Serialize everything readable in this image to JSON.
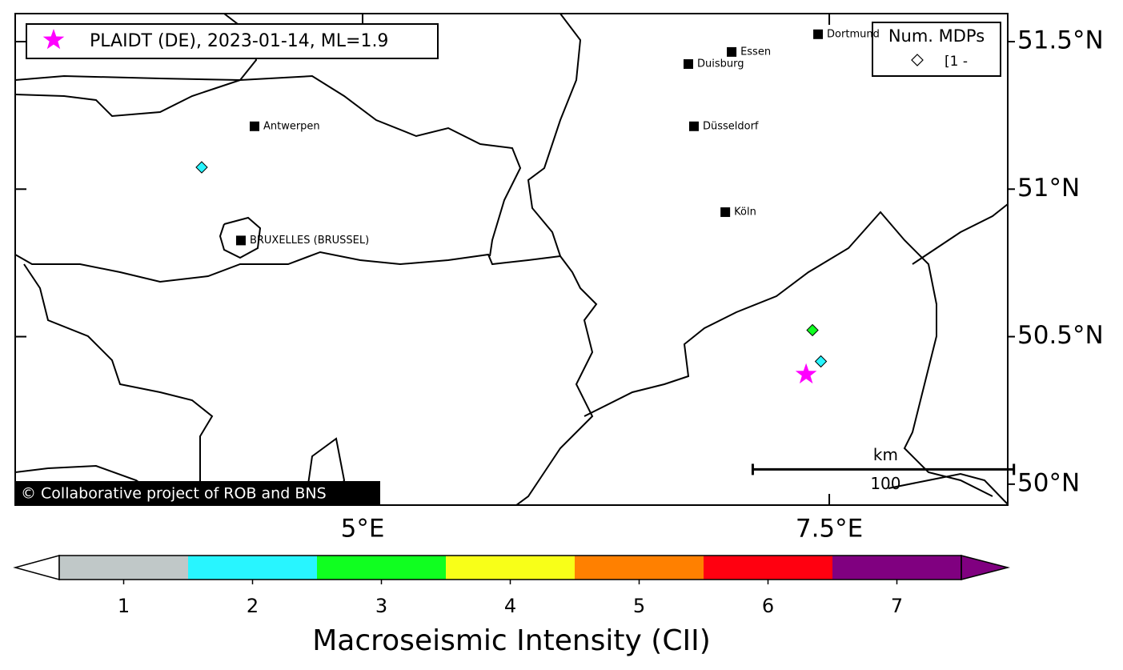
{
  "map": {
    "xlim": [
      3.139,
      8.456
    ],
    "ylim": [
      49.929,
      51.595
    ],
    "xticks": [
      {
        "value": 5,
        "label": "5°E"
      },
      {
        "value": 7.5,
        "label": "7.5°E"
      }
    ],
    "yticks": [
      {
        "value": 50,
        "label": "50°N"
      },
      {
        "value": 50.5,
        "label": "50.5°N"
      },
      {
        "value": 51,
        "label": "51°N"
      },
      {
        "value": 51.5,
        "label": "51.5°N"
      }
    ],
    "event": {
      "label": "PLAIDT (DE), 2023-01-14, ML=1.9",
      "lon": 7.376,
      "lat": 50.372,
      "color": "#ff00ff"
    },
    "mdp_legend": {
      "title": "Num. MDPs",
      "entry": "[1 -"
    },
    "mdps": [
      {
        "lon": 4.138,
        "lat": 51.074,
        "intensity": 2
      },
      {
        "lon": 7.41,
        "lat": 50.522,
        "intensity": 3
      },
      {
        "lon": 7.455,
        "lat": 50.416,
        "intensity": 2
      }
    ],
    "cities": [
      {
        "name": "Antwerpen",
        "lon": 4.421,
        "lat": 51.213
      },
      {
        "name": "BRUXELLES (BRUSSEL)",
        "lon": 4.348,
        "lat": 50.826
      },
      {
        "name": "Essen",
        "lon": 6.977,
        "lat": 51.465
      },
      {
        "name": "Duisburg",
        "lon": 6.745,
        "lat": 51.424
      },
      {
        "name": "Düsseldorf",
        "lon": 6.775,
        "lat": 51.213
      },
      {
        "name": "Köln",
        "lon": 6.943,
        "lat": 50.922
      },
      {
        "name": "Dortmund",
        "lon": 7.44,
        "lat": 51.525
      }
    ],
    "scalebar": {
      "unit": "km",
      "length": 100,
      "lon": 7.09,
      "lat": 50.05
    },
    "copyright": "© Collaborative project of ROB and BNS"
  },
  "colorbar": {
    "label": "Macroseismic Intensity (CII)",
    "range": [
      0.5,
      7.5
    ],
    "ticks": [
      1,
      2,
      3,
      4,
      5,
      6,
      7
    ],
    "colors": [
      "#c0c8c8",
      "#28f5ff",
      "#10ff20",
      "#f8ff18",
      "#ff8000",
      "#ff0010",
      "#800080"
    ]
  }
}
